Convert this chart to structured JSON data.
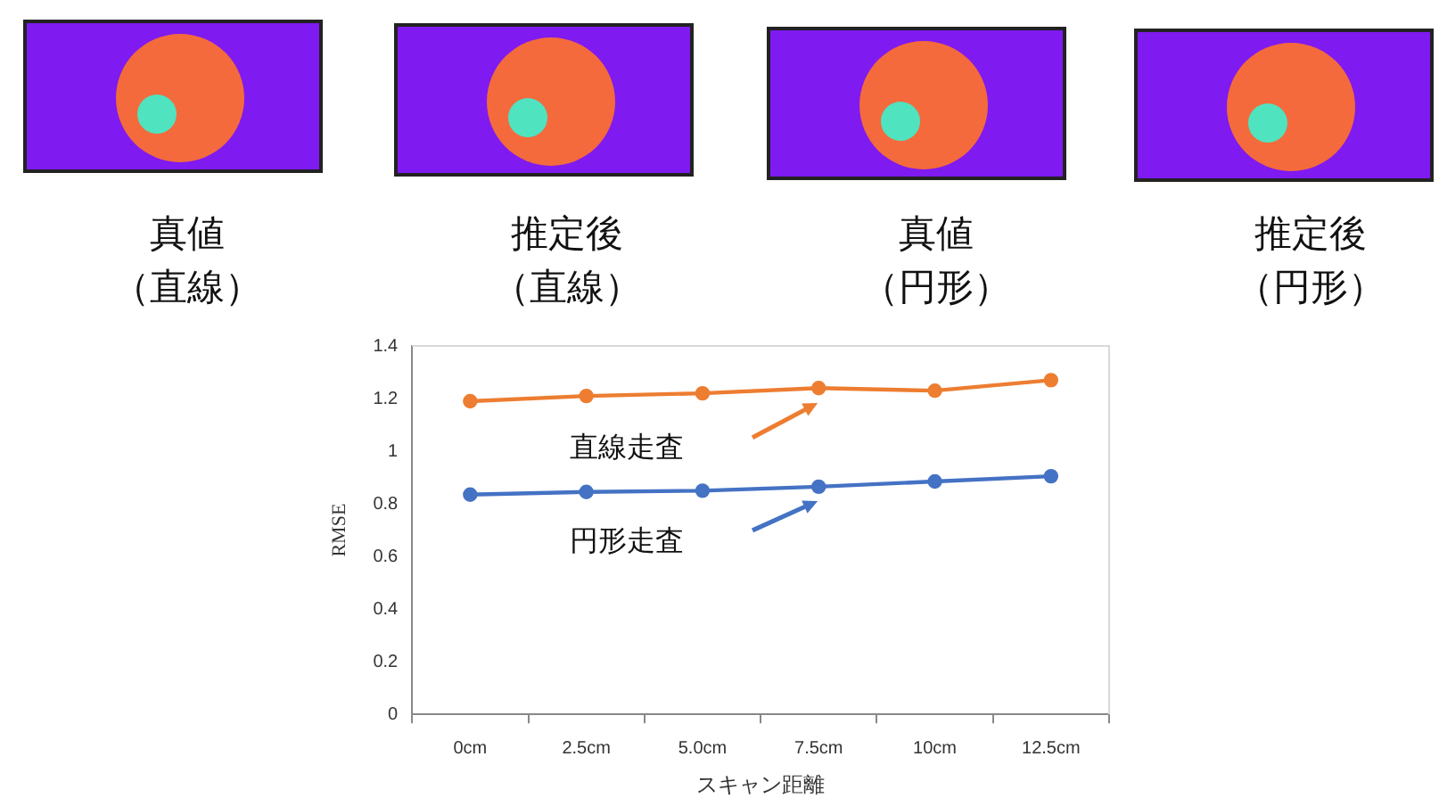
{
  "chart_data": {
    "type": "line",
    "xlabel": "スキャン距離",
    "ylabel": "RMSE",
    "categories": [
      "0cm",
      "2.5cm",
      "5.0cm",
      "7.5cm",
      "10cm",
      "12.5cm"
    ],
    "series": [
      {
        "name": "直線走査",
        "color": "#ed7d31",
        "values": [
          1.19,
          1.21,
          1.22,
          1.24,
          1.23,
          1.27
        ]
      },
      {
        "name": "円形走査",
        "color": "#4472c4",
        "values": [
          0.835,
          0.845,
          0.85,
          0.865,
          0.885,
          0.905
        ]
      }
    ],
    "ylim": [
      0,
      1.4
    ],
    "yticks": [
      0,
      0.2,
      0.4,
      0.6,
      0.8,
      1,
      1.2,
      1.4
    ],
    "legend": false,
    "grid": false,
    "marker": "circle",
    "line_style": "solid",
    "annotations": [
      "真値",
      "（直線）",
      "推定後",
      "（直線）",
      "真値",
      "（円形）",
      "推定後",
      "（円形）"
    ]
  }
}
